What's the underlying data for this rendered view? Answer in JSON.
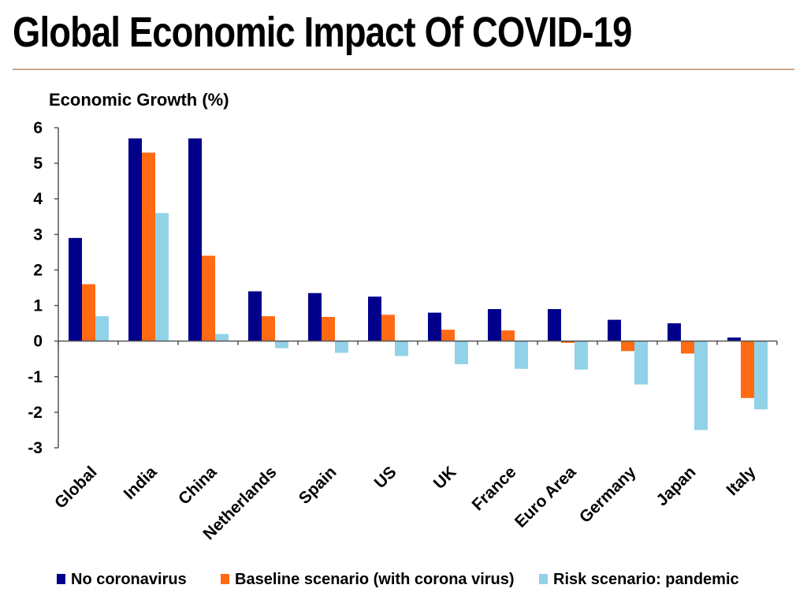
{
  "page": {
    "title": "Global Economic Impact Of COVID-19"
  },
  "colors": {
    "rule": "#c8a88a",
    "axis": "#555555",
    "text": "#000000"
  },
  "chart_data": {
    "type": "bar",
    "title": "",
    "ylabel": "Economic Growth (%)",
    "xlabel": "",
    "ylim": [
      -3,
      6
    ],
    "yticks": [
      6,
      5,
      4,
      3,
      2,
      1,
      0,
      -1,
      -2,
      -3
    ],
    "ytick_labels": [
      "6",
      "5",
      "4",
      "3",
      "2",
      "1",
      "0",
      "-1",
      "-2",
      "-3"
    ],
    "grid": false,
    "legend_position": "bottom",
    "categories": [
      "Global",
      "India",
      "China",
      "Netherlands",
      "Spain",
      "US",
      "UK",
      "France",
      "Euro Area",
      "Germany",
      "Japan",
      "Italy"
    ],
    "series": [
      {
        "name": "No coronavirus",
        "color": "#00008b",
        "values": [
          2.9,
          5.7,
          5.7,
          1.4,
          1.35,
          1.25,
          0.8,
          0.9,
          0.9,
          0.6,
          0.5,
          0.1
        ]
      },
      {
        "name": "Baseline scenario (with corona virus)",
        "color": "#ff6a13",
        "values": [
          1.6,
          5.3,
          2.4,
          0.7,
          0.68,
          0.74,
          0.32,
          0.3,
          -0.05,
          -0.28,
          -0.35,
          -1.6
        ]
      },
      {
        "name": "Risk scenario: pandemic",
        "color": "#92d2e8",
        "values": [
          0.7,
          3.6,
          0.2,
          -0.2,
          -0.33,
          -0.42,
          -0.65,
          -0.78,
          -0.8,
          -1.22,
          -2.5,
          -1.92
        ]
      }
    ]
  }
}
